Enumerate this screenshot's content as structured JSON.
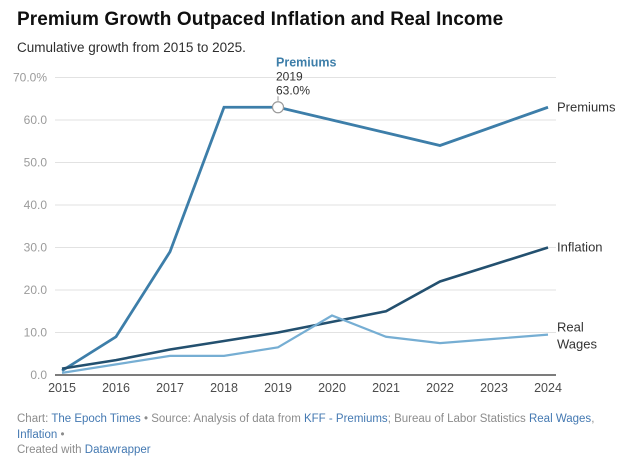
{
  "header": {
    "title": "Premium Growth Outpaced Inflation and Real Income",
    "subtitle": "Cumulative growth from 2015 to 2025."
  },
  "chart_data": {
    "type": "line",
    "x": [
      2015,
      2016,
      2017,
      2018,
      2019,
      2020,
      2021,
      2022,
      2023,
      2024
    ],
    "series": [
      {
        "name": "Premiums",
        "color": "#3d7ea9",
        "width": 2.8,
        "values": [
          1,
          9,
          29,
          63,
          63,
          60,
          57,
          54,
          58.5,
          63
        ],
        "label_lines": [
          "Premiums"
        ]
      },
      {
        "name": "Inflation",
        "color": "#23506f",
        "width": 2.6,
        "values": [
          1.5,
          3.5,
          6,
          8,
          10,
          12.5,
          15,
          22,
          26,
          30
        ],
        "label_lines": [
          "Inflation"
        ]
      },
      {
        "name": "Real Wages",
        "color": "#76aed3",
        "width": 2.2,
        "values": [
          0.5,
          2.5,
          4.5,
          4.5,
          6.5,
          14,
          9,
          7.5,
          8.5,
          9.5
        ],
        "label_lines": [
          "Real",
          "Wages"
        ]
      }
    ],
    "ylim": [
      0,
      70
    ],
    "yticks": [
      {
        "value": 0,
        "label": "0.0"
      },
      {
        "value": 10,
        "label": "10.0"
      },
      {
        "value": 20,
        "label": "20.0"
      },
      {
        "value": 30,
        "label": "30.0"
      },
      {
        "value": 40,
        "label": "40.0"
      },
      {
        "value": 50,
        "label": "50.0"
      },
      {
        "value": 60,
        "label": "60.0"
      },
      {
        "value": 70,
        "label": "70.0%"
      }
    ],
    "grid": "horizontal",
    "legend_position": "direct-right",
    "annotation": {
      "series_label": "Premiums",
      "series_color": "#3d7ea9",
      "year_label": "2019",
      "value_label": "63.0%",
      "x": 2019,
      "y": 63
    }
  },
  "footer": {
    "segments": [
      {
        "text": "Chart: "
      },
      {
        "text": "The Epoch Times",
        "link": true
      },
      {
        "text": " • Source: Analysis of data from "
      },
      {
        "text": "KFF - Premiums",
        "link": true
      },
      {
        "text": "; Bureau of Labor Statistics "
      },
      {
        "text": "Real Wages",
        "link": true
      },
      {
        "text": ", "
      },
      {
        "text": "Inflation",
        "link": true
      },
      {
        "text": " •"
      },
      {
        "br": true
      },
      {
        "text": "Created with "
      },
      {
        "text": "Datawrapper",
        "link": true
      }
    ]
  }
}
